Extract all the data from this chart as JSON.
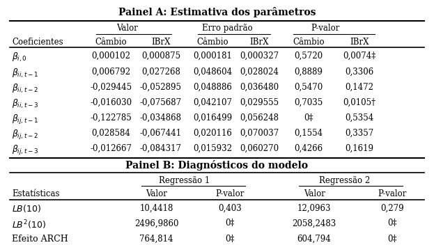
{
  "title_a": "Painel A: Estimativa dos parâmetros",
  "title_b": "Painel B: Diagnósticos do modelo",
  "panel_a_header2": [
    "Coeficientes",
    "Câmbio",
    "IBrX",
    "Câmbio",
    "IBrX",
    "Câmbio",
    "IBrX"
  ],
  "panel_a_rows": [
    [
      "0,000102",
      "0,000875",
      "0,000181",
      "0,000327",
      "0,5720",
      "0,0074‡"
    ],
    [
      "0,006792",
      "0,027268",
      "0,048604",
      "0,028024",
      "0,8889",
      "0,3306"
    ],
    [
      "-0,029445",
      "-0,052895",
      "0,048886",
      "0,036480",
      "0,5470",
      "0,1472"
    ],
    [
      "-0,016030",
      "-0,075687",
      "0,042107",
      "0,029555",
      "0,7035",
      "0,0105†"
    ],
    [
      "-0,122785",
      "-0,034868",
      "0,016499",
      "0,056248",
      "0‡",
      "0,5354"
    ],
    [
      "0,028584",
      "-0,067441",
      "0,020116",
      "0,070037",
      "0,1554",
      "0,3357"
    ],
    [
      "-0,012667",
      "-0,084317",
      "0,015932",
      "0,060270",
      "0,4266",
      "0,1619"
    ]
  ],
  "panel_b_header2": [
    "Estatísticas",
    "Valor",
    "P-valor",
    "Valor",
    "P-valor"
  ],
  "panel_b_rows": [
    [
      "10,4418",
      "0,403",
      "12,0963",
      "0,279"
    ],
    [
      "2496,9860",
      "0‡",
      "2058,2483",
      "0‡"
    ],
    [
      "764,814",
      "0‡",
      "604,794",
      "0‡"
    ]
  ],
  "bg_color": "white",
  "fontsize": 8.5,
  "col_a": [
    0.025,
    0.225,
    0.34,
    0.46,
    0.568,
    0.682,
    0.8
  ],
  "col_b": [
    0.025,
    0.33,
    0.5,
    0.695,
    0.875
  ],
  "beta_labels": [
    "$\\beta_{i,0}$",
    "$\\beta_{ii,t-1}$",
    "$\\beta_{ii,t-2}$",
    "$\\beta_{ii,t-3}$",
    "$\\beta_{ij,t-1}$",
    "$\\beta_{ij,t-2}$",
    "$\\beta_{ij,t-3}$"
  ],
  "lb_labels_math": [
    "$LB(10)$",
    "$LB^2(10)$"
  ],
  "lb_label_plain": "Efeito ARCH"
}
